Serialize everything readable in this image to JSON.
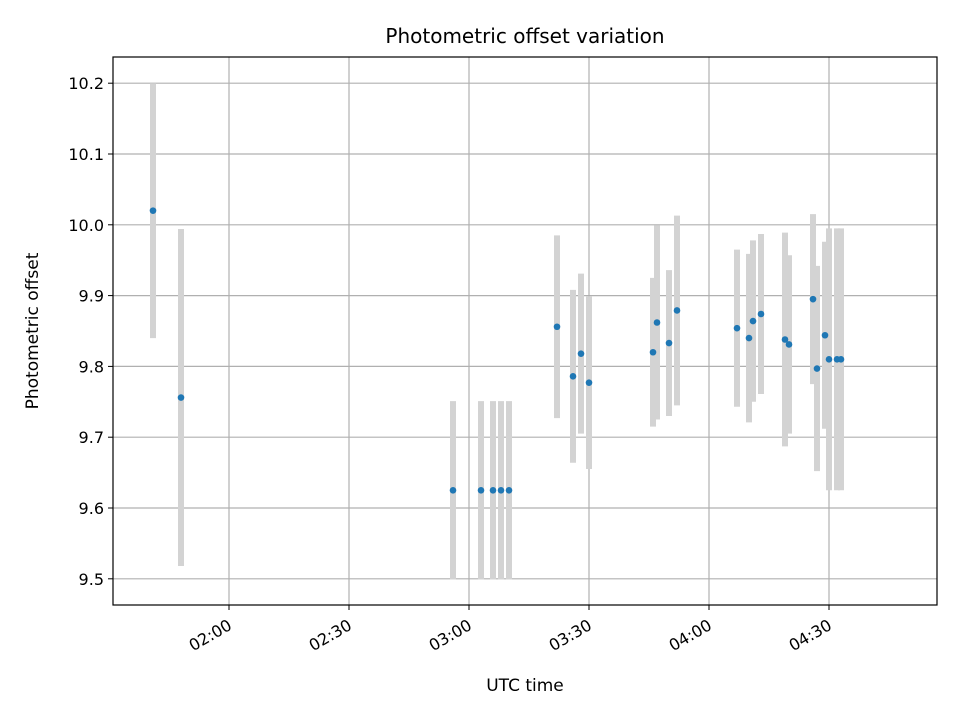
{
  "chart_data": {
    "type": "scatter",
    "title": "Photometric offset variation",
    "xlabel": "UTC time",
    "ylabel": "Photometric offset",
    "x_ticks": [
      "02:00",
      "02:30",
      "03:00",
      "03:30",
      "04:00",
      "04:30"
    ],
    "y_ticks": [
      "9.5",
      "9.6",
      "9.7",
      "9.8",
      "9.9",
      "10.0",
      "10.1",
      "10.2"
    ],
    "xlim": [
      "01:31",
      "04:57"
    ],
    "ylim": [
      9.463,
      10.237
    ],
    "grid": true,
    "point_color": "#1f77b4",
    "errorbar_color": "#d3d3d3",
    "points": [
      {
        "x": "01:41",
        "y": 10.02,
        "err": 0.18
      },
      {
        "x": "01:48",
        "y": 9.756,
        "err": 0.238
      },
      {
        "x": "02:56",
        "y": 9.625,
        "err": 0.126
      },
      {
        "x": "03:03",
        "y": 9.625,
        "err": 0.126
      },
      {
        "x": "03:06",
        "y": 9.625,
        "err": 0.126
      },
      {
        "x": "03:08",
        "y": 9.625,
        "err": 0.126
      },
      {
        "x": "03:10",
        "y": 9.625,
        "err": 0.126
      },
      {
        "x": "03:22",
        "y": 9.856,
        "err": 0.129
      },
      {
        "x": "03:26",
        "y": 9.786,
        "err": 0.122
      },
      {
        "x": "03:28",
        "y": 9.818,
        "err": 0.113
      },
      {
        "x": "03:30",
        "y": 9.777,
        "err": 0.122
      },
      {
        "x": "03:46",
        "y": 9.82,
        "err": 0.105
      },
      {
        "x": "03:47",
        "y": 9.862,
        "err": 0.137
      },
      {
        "x": "03:50",
        "y": 9.833,
        "err": 0.103
      },
      {
        "x": "03:52",
        "y": 9.879,
        "err": 0.134
      },
      {
        "x": "04:07",
        "y": 9.854,
        "err": 0.111
      },
      {
        "x": "04:10",
        "y": 9.84,
        "err": 0.119
      },
      {
        "x": "04:11",
        "y": 9.864,
        "err": 0.114
      },
      {
        "x": "04:13",
        "y": 9.874,
        "err": 0.113
      },
      {
        "x": "04:19",
        "y": 9.838,
        "err": 0.151
      },
      {
        "x": "04:20",
        "y": 9.831,
        "err": 0.126
      },
      {
        "x": "04:26",
        "y": 9.895,
        "err": 0.12
      },
      {
        "x": "04:27",
        "y": 9.797,
        "err": 0.145
      },
      {
        "x": "04:29",
        "y": 9.844,
        "err": 0.132
      },
      {
        "x": "04:30",
        "y": 9.81,
        "err": 0.185
      },
      {
        "x": "04:32",
        "y": 9.81,
        "err": 0.185
      },
      {
        "x": "04:33",
        "y": 9.81,
        "err": 0.185
      }
    ]
  }
}
